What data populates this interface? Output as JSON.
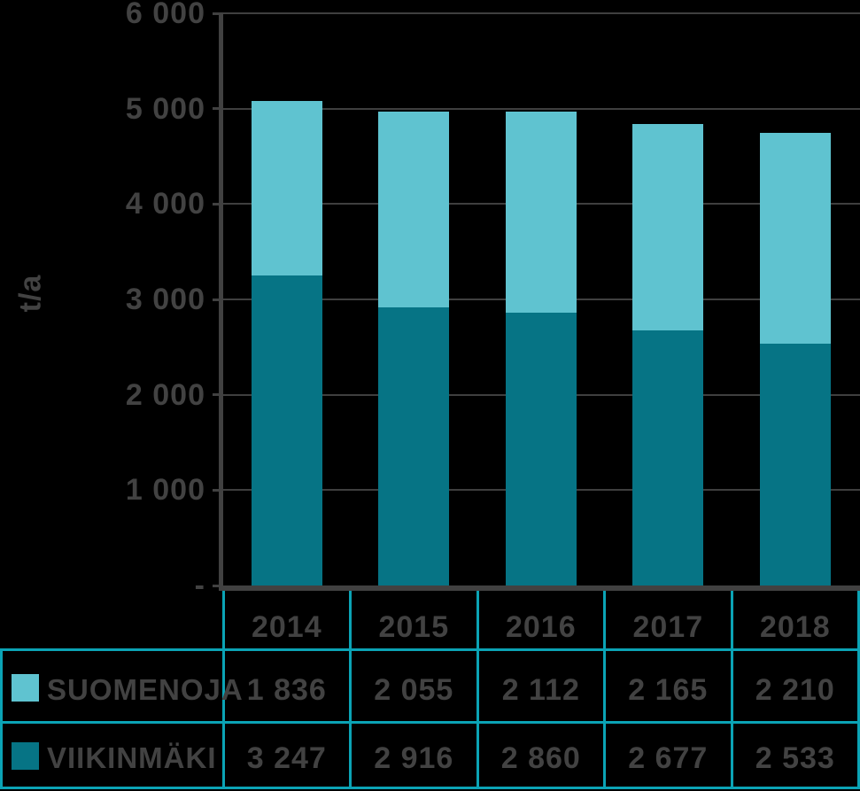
{
  "chart_data": {
    "type": "bar",
    "stacked": true,
    "title": "",
    "xlabel": "",
    "ylabel": "t/a",
    "ylim": [
      0,
      6000
    ],
    "ytick_interval": 1000,
    "ytick_labels": [
      "-",
      "1 000",
      "2 000",
      "3 000",
      "4 000",
      "5 000",
      "6 000"
    ],
    "grid": true,
    "categories": [
      "2014",
      "2015",
      "2016",
      "2017",
      "2018"
    ],
    "series": [
      {
        "name": "SUOMENOJA",
        "slug": "suomenoja",
        "color": "#5fc3d0",
        "values": [
          1836,
          2055,
          2112,
          2165,
          2210
        ]
      },
      {
        "name": "VIIKINMÄKI",
        "slug": "viikinmaki",
        "color": "#067485",
        "values": [
          3247,
          2916,
          2860,
          2677,
          2533
        ]
      }
    ],
    "legend_position": "table-left-column"
  },
  "table": {
    "header": [
      "2014",
      "2015",
      "2016",
      "2017",
      "2018"
    ],
    "rows": [
      {
        "label": "SUOMENOJA",
        "slug": "suomenoja",
        "swatch_color": "#5fc3d0",
        "values": [
          "1 836",
          "2 055",
          "2 112",
          "2 165",
          "2 210"
        ]
      },
      {
        "label": "VIIKINMÄKI",
        "slug": "viikinmaki",
        "swatch_color": "#067485",
        "values": [
          "3 247",
          "2 916",
          "2 860",
          "2 677",
          "2 533"
        ]
      }
    ]
  },
  "colors": {
    "suomenoja": "#5fc3d0",
    "viikinmaki": "#067485",
    "table_border": "#0ba3b5",
    "axis": "#414141",
    "gridline": "#3f3f3f",
    "text": "#424242",
    "background": "#000000"
  }
}
